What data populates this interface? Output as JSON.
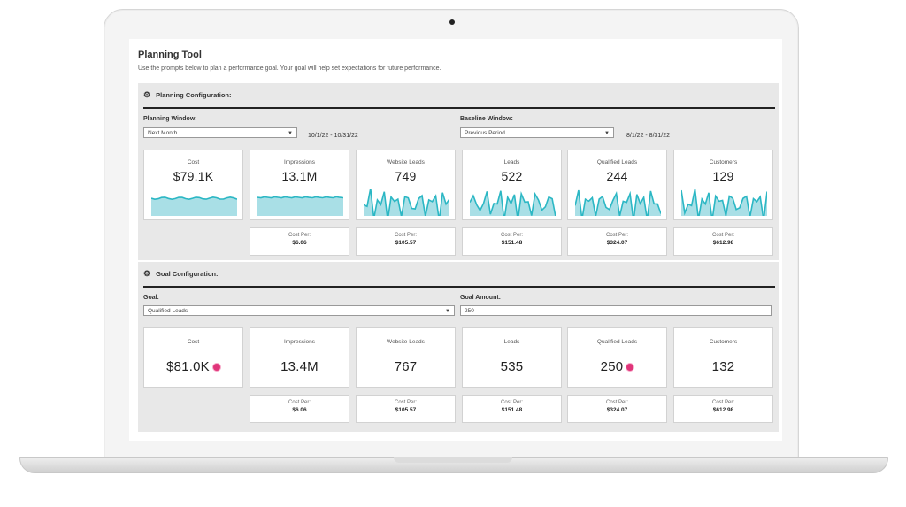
{
  "app": {
    "title": "Planning Tool",
    "subtitle": "Use the prompts below to plan a performance goal. Your goal will help set expectations for future performance."
  },
  "planning": {
    "section_title": "Planning Configuration:",
    "planning_window_label": "Planning Window:",
    "planning_window_value": "Next Month",
    "planning_window_dates": "10/1/22 - 10/31/22",
    "baseline_window_label": "Baseline Window:",
    "baseline_window_value": "Previous Period",
    "baseline_window_dates": "8/1/22 - 8/31/22",
    "metrics": [
      {
        "name": "Cost",
        "value": "$79.1K"
      },
      {
        "name": "Impressions",
        "value": "13.1M"
      },
      {
        "name": "Website Leads",
        "value": "749"
      },
      {
        "name": "Leads",
        "value": "522"
      },
      {
        "name": "Qualified Leads",
        "value": "244"
      },
      {
        "name": "Customers",
        "value": "129"
      }
    ],
    "cost_per": [
      {
        "label": "Cost Per:",
        "value": "$6.06"
      },
      {
        "label": "Cost Per:",
        "value": "$105.57"
      },
      {
        "label": "Cost Per:",
        "value": "$151.48"
      },
      {
        "label": "Cost Per:",
        "value": "$324.07"
      },
      {
        "label": "Cost Per:",
        "value": "$612.98"
      }
    ]
  },
  "goal": {
    "section_title": "Goal Configuration:",
    "goal_label": "Goal:",
    "goal_value": "Qualified Leads",
    "goal_amount_label": "Goal Amount:",
    "goal_amount_value": "250",
    "metrics": [
      {
        "name": "Cost",
        "value": "$81.0K"
      },
      {
        "name": "Impressions",
        "value": "13.4M"
      },
      {
        "name": "Website Leads",
        "value": "767"
      },
      {
        "name": "Leads",
        "value": "535"
      },
      {
        "name": "Qualified Leads",
        "value": "250"
      },
      {
        "name": "Customers",
        "value": "132"
      }
    ],
    "cost_per": [
      {
        "label": "Cost Per:",
        "value": "$6.06"
      },
      {
        "label": "Cost Per:",
        "value": "$105.57"
      },
      {
        "label": "Cost Per:",
        "value": "$151.48"
      },
      {
        "label": "Cost Per:",
        "value": "$324.07"
      },
      {
        "label": "Cost Per:",
        "value": "$612.98"
      }
    ]
  },
  "colors": {
    "spark": "#2bb7c4",
    "spark_fill": "#a9dfe6",
    "indicator": "#e0357a"
  },
  "icons": {
    "section": "gear-icon",
    "dropdown": "chevron-down-icon",
    "indicator": "goal-indicator-dot-icon"
  }
}
